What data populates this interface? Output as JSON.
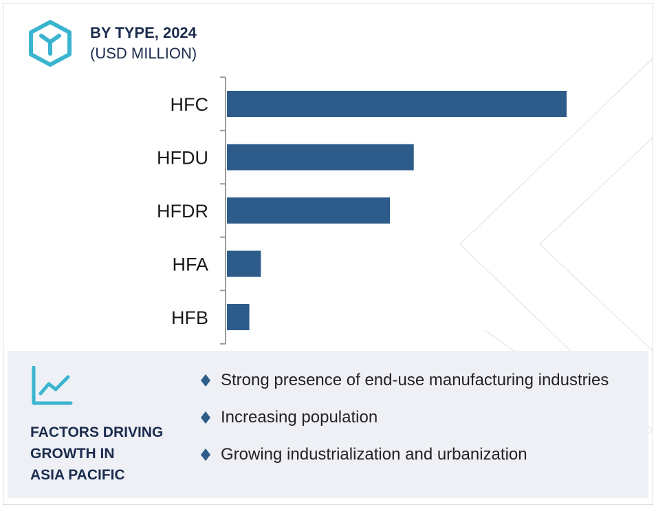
{
  "header": {
    "title": "BY TYPE, 2024",
    "subtitle": "(USD MILLION)",
    "icon": "hexagon-y-icon"
  },
  "chart_data": {
    "type": "bar",
    "orientation": "horizontal",
    "title": "BY TYPE, 2024",
    "subtitle": "(USD MILLION)",
    "categories": [
      "HFC",
      "HFDU",
      "HFDR",
      "HFA",
      "HFB"
    ],
    "values": [
      100,
      55,
      48,
      10,
      6.6
    ],
    "xlim": [
      0,
      100
    ],
    "grid": false,
    "bar_color": "#2d5b8a",
    "axis_color": "#9a9a9a",
    "value_labels_shown": false
  },
  "factors": {
    "icon": "trend-chart-icon",
    "title_lines": [
      "FACTORS DRIVING",
      "GROWTH IN",
      "ASIA PACIFIC"
    ],
    "items": [
      {
        "text": "Strong presence of end-use manufacturing industries"
      },
      {
        "text": "Increasing population"
      },
      {
        "text": "Growing industrialization and urbanization"
      }
    ]
  },
  "colors": {
    "accent_teal": "#3bb5cf",
    "heading_navy": "#1b2c4e",
    "bullet_navy": "#2d5b8a",
    "panel_background": "#eef0f5"
  }
}
